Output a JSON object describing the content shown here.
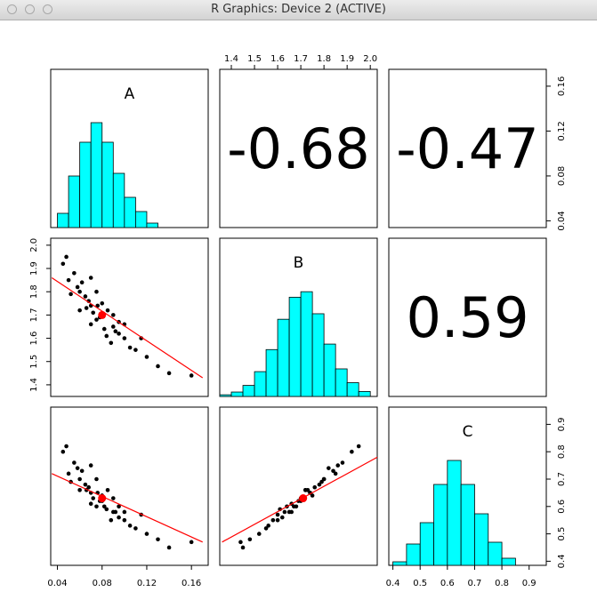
{
  "window_title": "R Graphics: Device 2 (ACTIVE)",
  "chart_data": [
    {
      "type": "histogram",
      "title": "A",
      "bins": [
        0.04,
        0.05,
        0.06,
        0.07,
        0.08,
        0.09,
        0.1,
        0.11,
        0.12,
        0.13
      ],
      "counts": [
        32,
        116,
        192,
        236,
        192,
        122,
        68,
        36,
        10
      ],
      "color": "#00ffff",
      "xlim": [
        0.034,
        0.175
      ],
      "ylim": [
        0,
        356
      ]
    },
    {
      "type": "correlation",
      "value": -0.68,
      "xlim": [
        1.35,
        2.03
      ],
      "xticks": [
        1.4,
        1.5,
        1.6,
        1.7,
        1.8,
        1.9,
        {
          "value": 2,
          "label": "2.0"
        }
      ],
      "x_axis_side": "top"
    },
    {
      "type": "correlation",
      "value": -0.47,
      "ylim": [
        0.034,
        0.175
      ],
      "yticks": [
        0.04,
        0.08,
        0.12,
        0.16
      ],
      "y_axis_side": "right"
    },
    {
      "type": "scatter",
      "color": "#000000",
      "fit_color": "#ff0000",
      "xlim": [
        0.034,
        0.175
      ],
      "ylim": [
        1.35,
        2.03
      ],
      "yticks": [
        1.4,
        1.5,
        1.6,
        1.7,
        1.8,
        1.9,
        {
          "value": 2,
          "label": "2.0"
        }
      ],
      "y_axis_side": "left",
      "x": [
        0.05,
        0.06,
        0.07,
        0.08,
        0.09,
        0.1,
        0.065,
        0.075,
        0.085,
        0.095,
        0.055,
        0.07,
        0.08,
        0.11,
        0.12,
        0.045,
        0.06,
        0.09,
        0.13,
        0.075,
        0.082,
        0.068,
        0.058,
        0.1,
        0.14,
        0.072,
        0.088,
        0.062,
        0.078,
        0.095,
        0.052,
        0.115,
        0.066,
        0.084,
        0.105,
        0.07,
        0.16,
        0.048,
        0.092,
        0.076
      ],
      "y": [
        1.85,
        1.8,
        1.74,
        1.7,
        1.65,
        1.6,
        1.78,
        1.68,
        1.72,
        1.62,
        1.88,
        1.66,
        1.75,
        1.55,
        1.52,
        1.92,
        1.72,
        1.7,
        1.48,
        1.8,
        1.64,
        1.76,
        1.82,
        1.66,
        1.45,
        1.71,
        1.58,
        1.84,
        1.69,
        1.67,
        1.79,
        1.6,
        1.73,
        1.61,
        1.56,
        1.86,
        1.44,
        1.95,
        1.63,
        1.74
      ],
      "fit_line": {
        "x": [
          0.035,
          0.17
        ],
        "y": [
          1.86,
          1.43
        ]
      },
      "mean_point": {
        "x": 0.08,
        "y": 1.7
      }
    },
    {
      "type": "histogram",
      "title": "B",
      "bins": [
        1.35,
        1.4,
        1.45,
        1.5,
        1.55,
        1.6,
        1.65,
        1.7,
        1.75,
        1.8,
        1.85,
        1.9,
        1.95,
        2.0
      ],
      "counts": [
        3,
        8,
        20,
        45,
        85,
        140,
        180,
        190,
        150,
        95,
        50,
        25,
        9
      ],
      "color": "#00ffff",
      "xlim": [
        1.35,
        2.03
      ],
      "ylim": [
        0,
        287
      ]
    },
    {
      "type": "correlation",
      "value": 0.59
    },
    {
      "type": "scatter",
      "color": "#000000",
      "fit_color": "#ff0000",
      "xlim": [
        0.034,
        0.175
      ],
      "ylim": [
        0.385,
        0.963
      ],
      "xticks": [
        0.04,
        0.08,
        0.12,
        0.16
      ],
      "x_axis_side": "bottom",
      "x": [
        0.05,
        0.06,
        0.07,
        0.08,
        0.09,
        0.1,
        0.065,
        0.075,
        0.085,
        0.095,
        0.055,
        0.07,
        0.08,
        0.11,
        0.12,
        0.045,
        0.06,
        0.09,
        0.13,
        0.075,
        0.082,
        0.068,
        0.058,
        0.1,
        0.14,
        0.072,
        0.088,
        0.062,
        0.078,
        0.095,
        0.052,
        0.115,
        0.066,
        0.084,
        0.105,
        0.07,
        0.16,
        0.048,
        0.092,
        0.076
      ],
      "y": [
        0.72,
        0.7,
        0.65,
        0.62,
        0.58,
        0.55,
        0.68,
        0.6,
        0.66,
        0.56,
        0.76,
        0.61,
        0.64,
        0.52,
        0.5,
        0.8,
        0.66,
        0.63,
        0.48,
        0.7,
        0.6,
        0.67,
        0.74,
        0.58,
        0.45,
        0.63,
        0.55,
        0.73,
        0.62,
        0.6,
        0.69,
        0.57,
        0.66,
        0.59,
        0.53,
        0.75,
        0.47,
        0.82,
        0.58,
        0.65
      ],
      "fit_line": {
        "x": [
          0.035,
          0.17
        ],
        "y": [
          0.72,
          0.47
        ]
      },
      "mean_point": {
        "x": 0.08,
        "y": 0.63
      }
    },
    {
      "type": "scatter",
      "color": "#000000",
      "fit_color": "#ff0000",
      "xlim": [
        1.35,
        2.03
      ],
      "ylim": [
        0.385,
        0.963
      ],
      "x": [
        1.85,
        1.8,
        1.74,
        1.7,
        1.65,
        1.6,
        1.78,
        1.68,
        1.72,
        1.62,
        1.88,
        1.66,
        1.75,
        1.55,
        1.52,
        1.92,
        1.72,
        1.7,
        1.48,
        1.8,
        1.64,
        1.76,
        1.82,
        1.66,
        1.45,
        1.71,
        1.58,
        1.84,
        1.69,
        1.67,
        1.79,
        1.6,
        1.73,
        1.61,
        1.56,
        1.86,
        1.44,
        1.95,
        1.63,
        1.74
      ],
      "y": [
        0.72,
        0.7,
        0.65,
        0.62,
        0.58,
        0.55,
        0.68,
        0.6,
        0.66,
        0.56,
        0.76,
        0.61,
        0.64,
        0.52,
        0.5,
        0.8,
        0.66,
        0.63,
        0.48,
        0.7,
        0.6,
        0.67,
        0.74,
        0.58,
        0.45,
        0.63,
        0.55,
        0.73,
        0.62,
        0.6,
        0.69,
        0.57,
        0.66,
        0.59,
        0.53,
        0.75,
        0.47,
        0.82,
        0.58,
        0.65
      ],
      "fit_line": {
        "x": [
          1.36,
          2.03
        ],
        "y": [
          0.47,
          0.78
        ]
      },
      "mean_point": {
        "x": 1.71,
        "y": 0.63
      }
    },
    {
      "type": "histogram",
      "title": "C",
      "bins": [
        0.4,
        0.45,
        0.5,
        0.55,
        0.6,
        0.65,
        0.7,
        0.75,
        0.8,
        0.85
      ],
      "counts": [
        8,
        48,
        96,
        182,
        236,
        182,
        116,
        52,
        16
      ],
      "color": "#00ffff",
      "xlim": [
        0.385,
        0.963
      ],
      "ylim": [
        0,
        356
      ],
      "xticks": [
        0.4,
        0.5,
        0.6,
        0.7,
        0.8,
        0.9
      ],
      "x_axis_side": "bottom",
      "yticks": [
        0.4,
        0.5,
        0.6,
        0.7,
        0.8,
        0.9
      ],
      "ytick_lim": [
        0.385,
        0.963
      ],
      "y_axis_side": "right"
    }
  ]
}
